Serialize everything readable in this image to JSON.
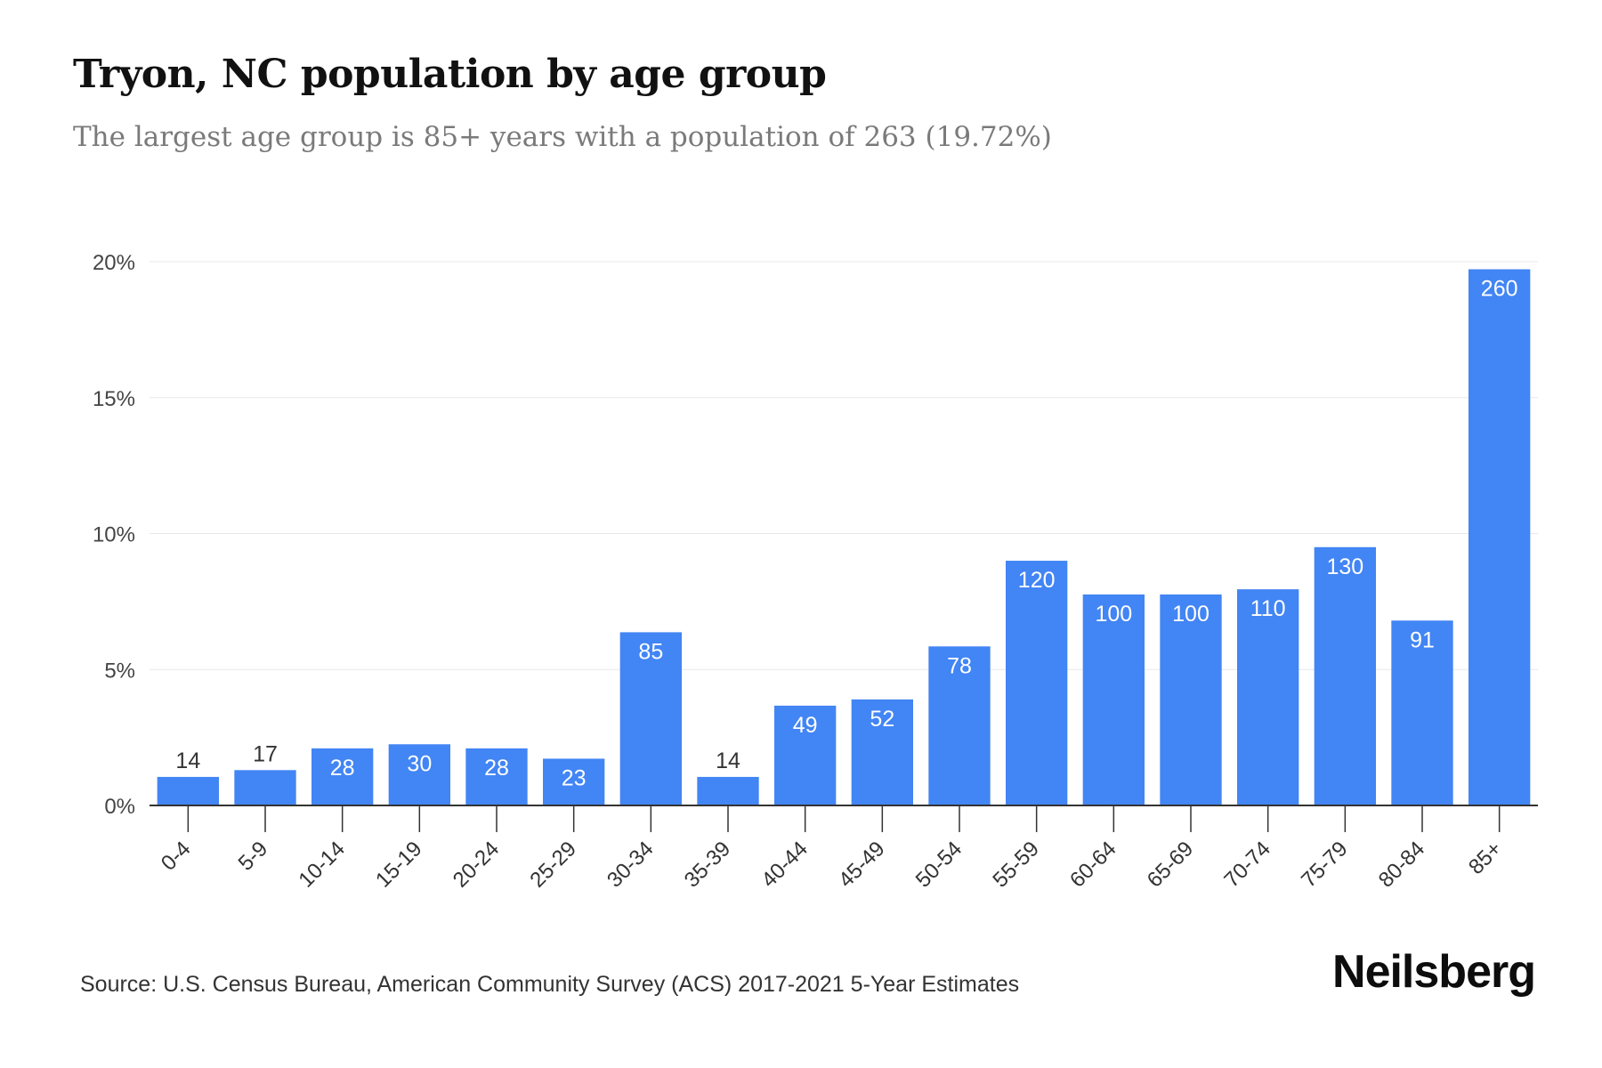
{
  "header": {
    "title": "Tryon, NC population by age group",
    "subtitle": "The largest age group is 85+ years with a population of 263 (19.72%)"
  },
  "footer": {
    "source": "Source: U.S. Census Bureau, American Community Survey (ACS) 2017-2021 5-Year Estimates",
    "brand": "Neilsberg"
  },
  "colors": {
    "bar": "#4285f4",
    "grid": "#e8e8e8",
    "axis": "#333333",
    "label_inside": "#ffffff",
    "label_outside": "#333333"
  },
  "chart_data": {
    "type": "bar",
    "title": "Tryon, NC population by age group",
    "subtitle": "The largest age group is 85+ years with a population of 263 (19.72%)",
    "xlabel": "",
    "ylabel": "",
    "ylim": [
      0,
      20
    ],
    "yticks": [
      0,
      5,
      10,
      15,
      20
    ],
    "ytick_labels": [
      "0%",
      "5%",
      "10%",
      "15%",
      "20%"
    ],
    "grid": true,
    "legend": "none",
    "categories": [
      "0-4",
      "5-9",
      "10-14",
      "15-19",
      "20-24",
      "25-29",
      "30-34",
      "35-39",
      "40-44",
      "45-49",
      "50-54",
      "55-59",
      "60-64",
      "65-69",
      "70-74",
      "75-79",
      "80-84",
      "85+"
    ],
    "series": [
      {
        "values": [
          1.05,
          1.3,
          2.1,
          2.25,
          2.1,
          1.72,
          6.37,
          1.05,
          3.67,
          3.9,
          5.85,
          9.0,
          7.76,
          7.76,
          7.95,
          9.5,
          6.8,
          19.72
        ],
        "labels": [
          "14",
          "17",
          "28",
          "30",
          "28",
          "23",
          "85",
          "14",
          "49",
          "52",
          "78",
          "120",
          "100",
          "100",
          "110",
          "130",
          "91",
          "260"
        ]
      }
    ]
  }
}
